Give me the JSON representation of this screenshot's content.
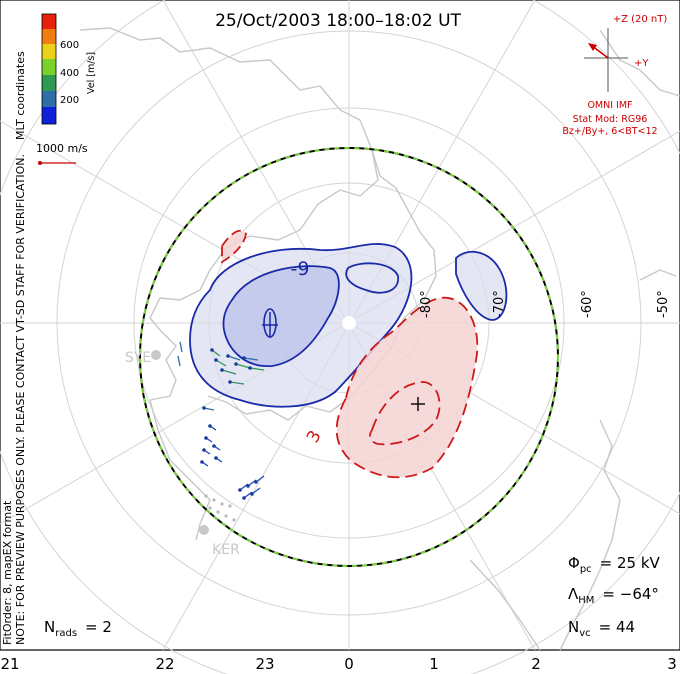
{
  "title": "25/Oct/2003 18:00–18:02 UT",
  "colorbar": {
    "ticks": [
      "600",
      "400",
      "200"
    ],
    "label": "Vel [m/s]",
    "colors": [
      "#e8200e",
      "#f07d12",
      "#e9d21a",
      "#7ad12a",
      "#2f9a54",
      "#2f6fa8",
      "#1020d8"
    ]
  },
  "reference_vector": {
    "label": "1000 m/s",
    "color": "#cc0000"
  },
  "side_notes": {
    "coords": "MLT coordinates",
    "preview": "NOTE: FOR PREVIEW PURPOSES ONLY. PLEASE CONTACT VT-SD STAFF FOR VERIFICATION.",
    "fit": "FitOrder: 8, mapEX format"
  },
  "imf": {
    "z_label": "+Z (20 nT)",
    "y_label": "+Y",
    "source": "OMNI IMF",
    "model": "Stat Mod: RG96",
    "conditions": "Bz+/By+, 6<BT<12",
    "color": "#cc0000"
  },
  "lat_labels": [
    "-80°",
    "-70°",
    "-60°",
    "-50°"
  ],
  "contour_labels": {
    "negative": "-9",
    "positive": "3"
  },
  "stations": [
    "SYE",
    "KER"
  ],
  "stats": {
    "phi_symbol": "Φ",
    "phi_sub": "pc",
    "phi_value": "= 25 kV",
    "lambda_symbol": "Λ",
    "lambda_sub": "HM",
    "lambda_value": "= −64°",
    "nvc_symbol": "N",
    "nvc_sub": "vc",
    "nvc_value": "= 44",
    "nrads_symbol": "N",
    "nrads_sub": "rads",
    "nrads_value": "= 2"
  },
  "mlt_labels": [
    "21",
    "22",
    "23",
    "0",
    "1",
    "2",
    "3"
  ],
  "colors": {
    "negative_cell": "#1a2aa8",
    "positive_cell": "#cc1a1a",
    "boundary_green": "#7bd13a",
    "coastline": "#c8c8c8",
    "grid": "#d4d4d4"
  }
}
